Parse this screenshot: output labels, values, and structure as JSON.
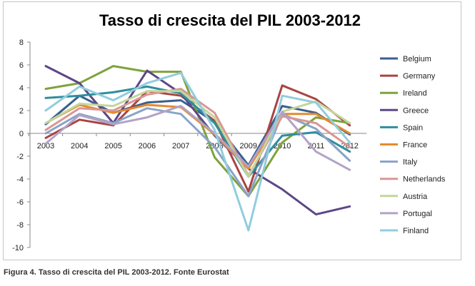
{
  "caption": "Figura 4. Tasso di crescita del PIL 2003-2012. Fonte Eurostat",
  "chart_data": {
    "type": "line",
    "title": "Tasso di crescita del PIL 2003-2012",
    "xlabel": "",
    "ylabel": "",
    "ylim": [
      -10,
      8
    ],
    "y_ticks": [
      -10,
      -8,
      -6,
      -4,
      -2,
      0,
      2,
      4,
      6,
      8
    ],
    "categories": [
      "2003",
      "2004",
      "2005",
      "2006",
      "2007",
      "2008",
      "2009",
      "2010",
      "2011",
      "2012"
    ],
    "grid": false,
    "legend_position": "right",
    "series": [
      {
        "name": "Belgium",
        "color": "#3a5f8f",
        "values": [
          0.8,
          3.3,
          1.8,
          2.7,
          2.9,
          1.0,
          -2.8,
          2.4,
          1.8,
          -0.1
        ]
      },
      {
        "name": "Germany",
        "color": "#a94442",
        "values": [
          -0.4,
          1.2,
          0.7,
          3.7,
          3.3,
          1.1,
          -5.1,
          4.2,
          3.0,
          0.7
        ]
      },
      {
        "name": "Ireland",
        "color": "#7ea33c",
        "values": [
          3.9,
          4.4,
          5.9,
          5.4,
          5.4,
          -2.1,
          -5.5,
          -0.8,
          1.4,
          0.9
        ]
      },
      {
        "name": "Greece",
        "color": "#5d4786",
        "values": [
          5.9,
          4.4,
          0.9,
          5.5,
          3.5,
          -0.2,
          -3.1,
          -4.9,
          -7.1,
          -6.4
        ]
      },
      {
        "name": "Spain",
        "color": "#2f8e9e",
        "values": [
          3.1,
          3.3,
          3.6,
          4.1,
          3.5,
          0.9,
          -3.8,
          -0.2,
          0.1,
          -1.6
        ]
      },
      {
        "name": "France",
        "color": "#e68a2e",
        "values": [
          0.9,
          2.5,
          1.8,
          2.5,
          2.3,
          -0.1,
          -3.1,
          1.7,
          1.7,
          0.0
        ]
      },
      {
        "name": "Italy",
        "color": "#8aa3c8",
        "values": [
          0.0,
          1.7,
          0.9,
          2.2,
          1.7,
          -1.2,
          -5.5,
          1.7,
          0.4,
          -2.4
        ]
      },
      {
        "name": "Netherlands",
        "color": "#d99694",
        "values": [
          0.3,
          2.2,
          2.0,
          3.4,
          3.9,
          1.8,
          -3.7,
          1.5,
          0.9,
          -1.2
        ]
      },
      {
        "name": "Austria",
        "color": "#c3d69b",
        "values": [
          0.9,
          2.6,
          2.4,
          3.7,
          3.7,
          1.4,
          -3.8,
          1.9,
          2.8,
          0.9
        ]
      },
      {
        "name": "Portugal",
        "color": "#b3a2c7",
        "values": [
          -0.9,
          1.6,
          0.8,
          1.4,
          2.4,
          0.0,
          -2.9,
          1.9,
          -1.6,
          -3.2
        ]
      },
      {
        "name": "Finland",
        "color": "#92cddc",
        "values": [
          2.0,
          4.1,
          2.9,
          4.4,
          5.3,
          0.3,
          -8.5,
          3.3,
          2.7,
          -0.8
        ]
      }
    ]
  }
}
